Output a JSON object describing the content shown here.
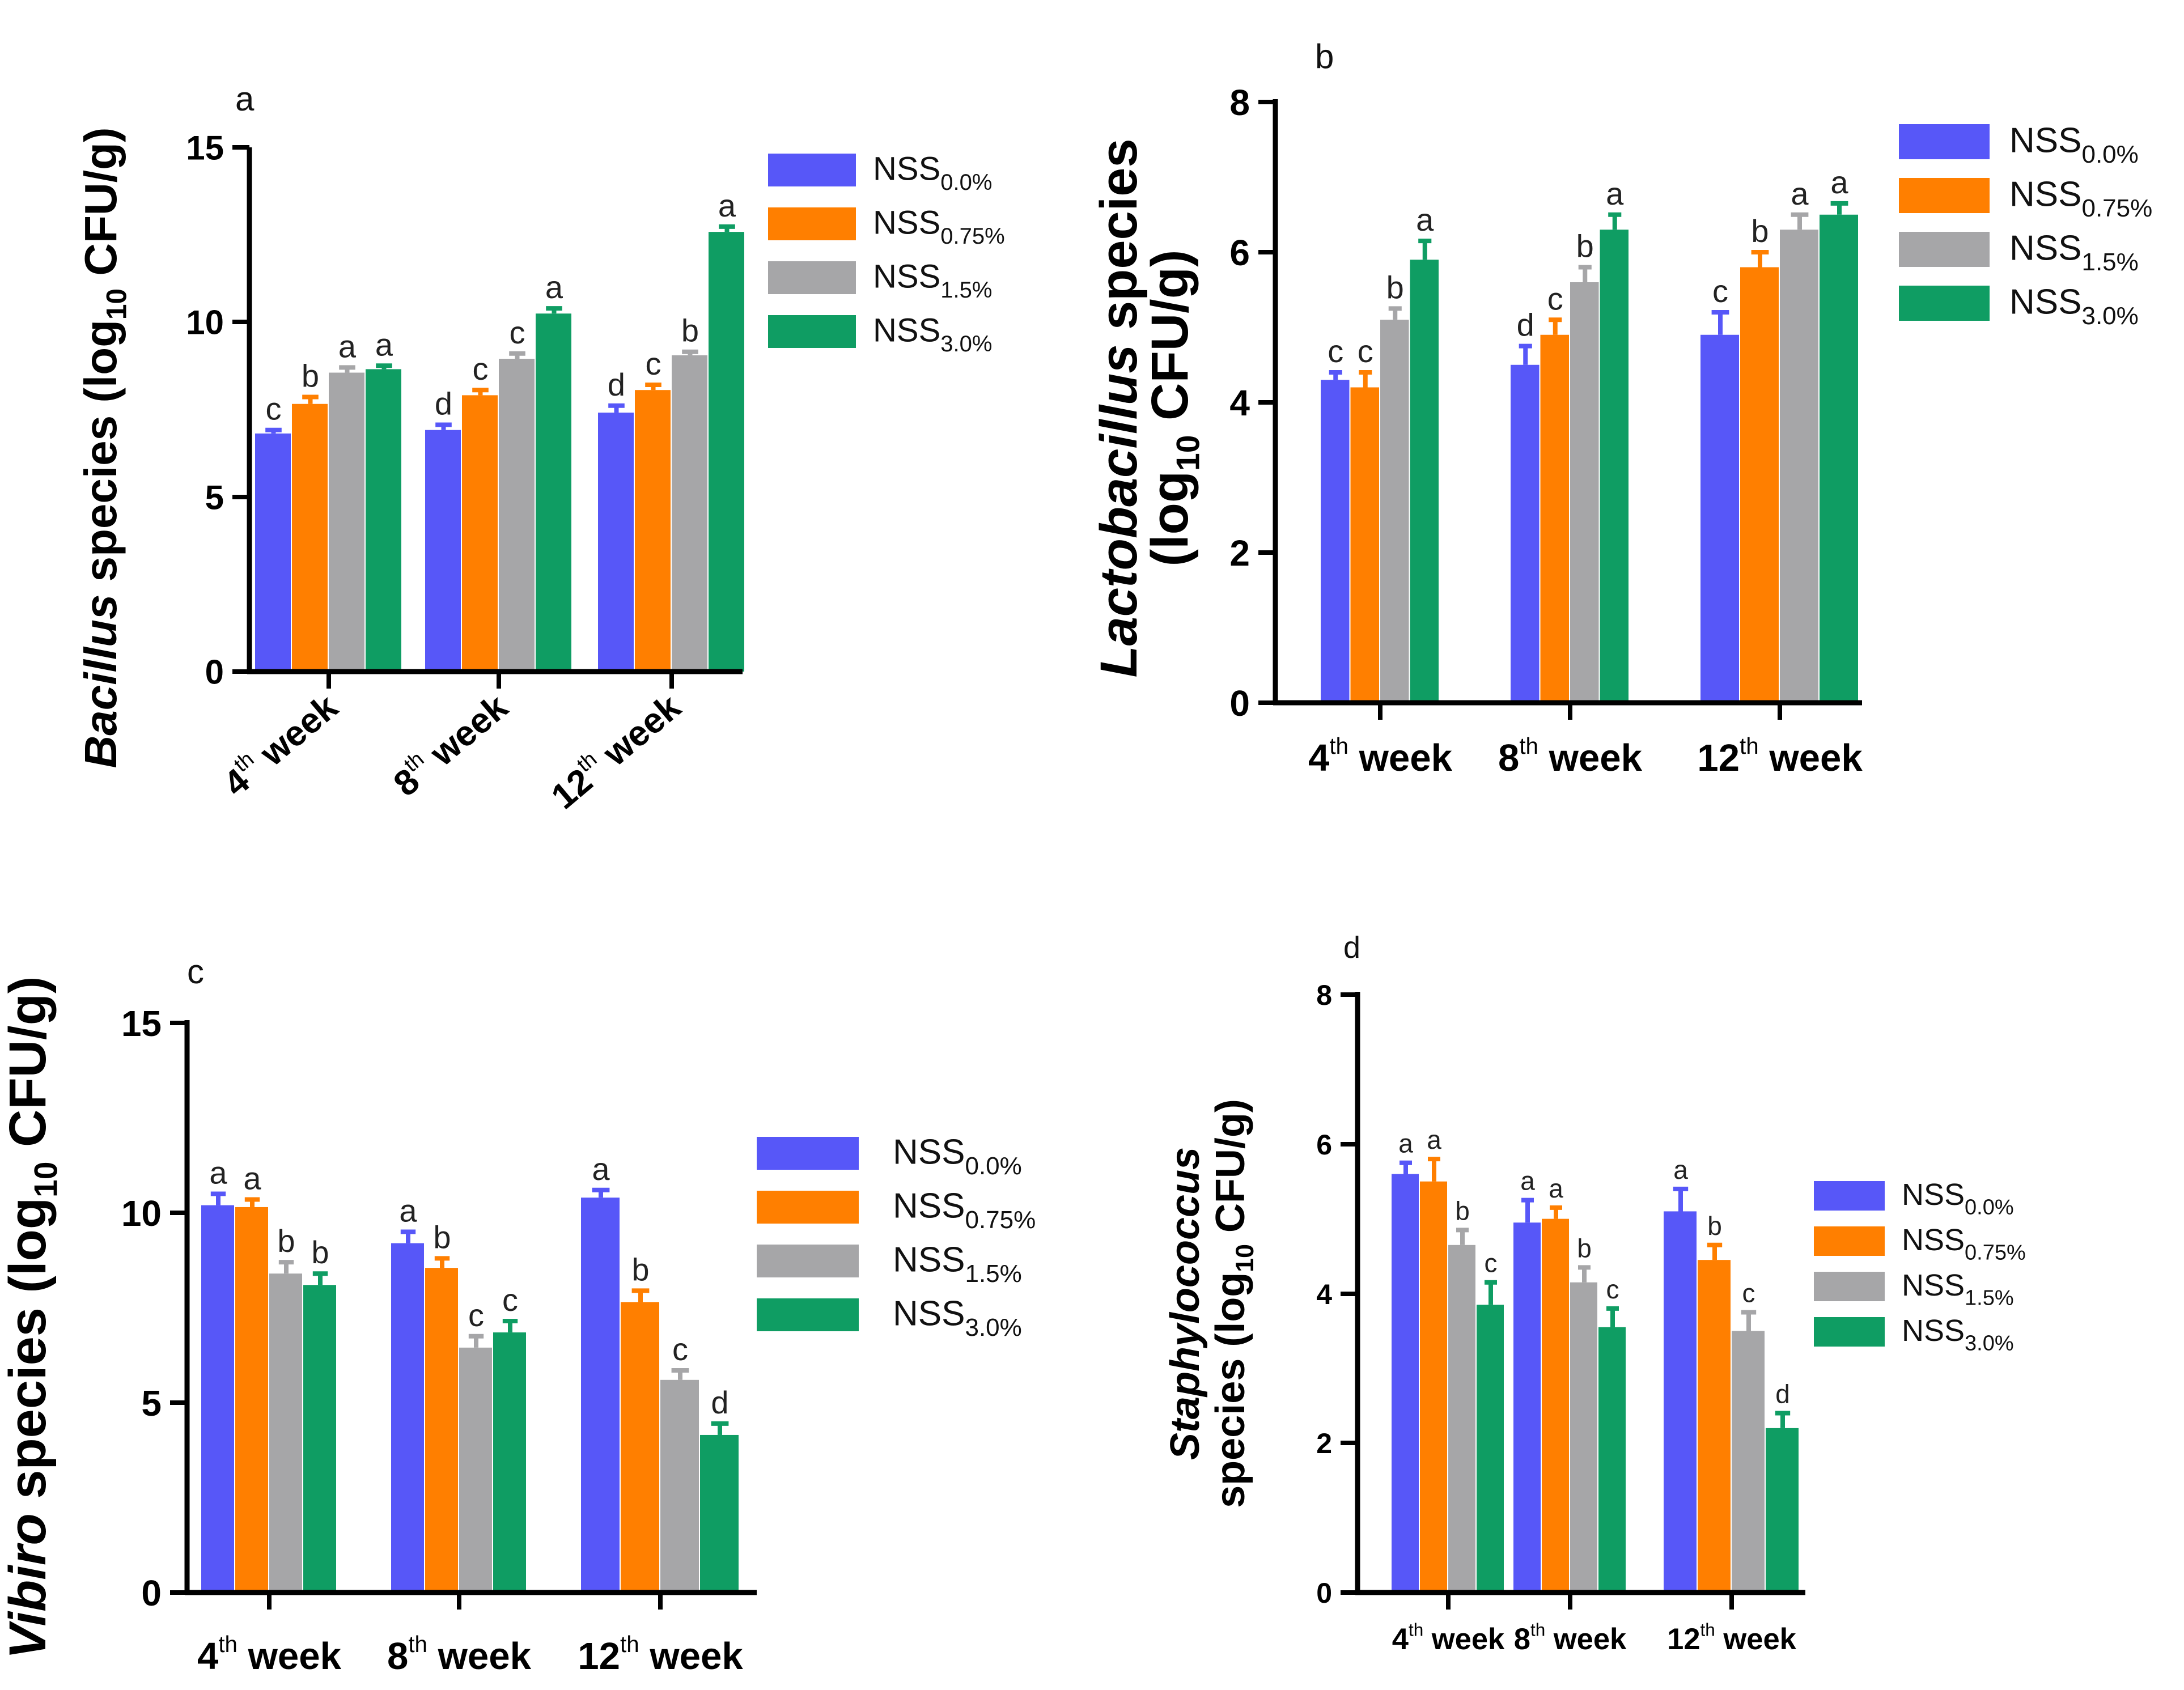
{
  "colors": [
    "#5757F8",
    "#FF7F00",
    "#A6A6A8",
    "#0F9D63"
  ],
  "chart_data": [
    {
      "type": "bar",
      "panel_label": "a",
      "ylabel_italic": "Bacillus",
      "ylabel_rest": " species (log",
      "ylabel_sub": "10",
      "ylabel_end": " CFU/g)",
      "categories": [
        {
          "num": "4",
          "sup": "th",
          "word": " week"
        },
        {
          "num": "8",
          "sup": "th",
          "word": " week"
        },
        {
          "num": "12",
          "sup": "th",
          "word": " week"
        }
      ],
      "series": [
        {
          "base": "NSS",
          "sub": "0.0%",
          "values": [
            6.85,
            6.95,
            7.45
          ],
          "errors": [
            0.1,
            0.15,
            0.2
          ],
          "letters": [
            "c",
            "d",
            "d"
          ]
        },
        {
          "base": "NSS",
          "sub": "0.75%",
          "values": [
            7.7,
            7.95,
            8.1
          ],
          "errors": [
            0.2,
            0.15,
            0.15
          ],
          "letters": [
            "b",
            "c",
            "c"
          ]
        },
        {
          "base": "NSS",
          "sub": "1.5%",
          "values": [
            8.6,
            9.0,
            9.1
          ],
          "errors": [
            0.15,
            0.15,
            0.1
          ],
          "letters": [
            "a",
            "c",
            "b"
          ]
        },
        {
          "base": "NSS",
          "sub": "3.0%",
          "values": [
            8.7,
            10.3,
            12.65
          ],
          "errors": [
            0.1,
            0.15,
            0.15
          ],
          "letters": [
            "a",
            "a",
            "a"
          ]
        }
      ],
      "yticks": [
        "0",
        "5",
        "10",
        "15"
      ],
      "ylim": [
        0,
        15
      ]
    },
    {
      "type": "bar",
      "panel_label": "b",
      "ylabel_italic": "Lactobacillus",
      "ylabel_rest": " species",
      "ylabel2": "(log",
      "ylabel_sub": "10",
      "ylabel_end": " CFU/g)",
      "categories": [
        {
          "num": "4",
          "sup": "th",
          "word": " week"
        },
        {
          "num": "8",
          "sup": "th",
          "word": " week"
        },
        {
          "num": "12",
          "sup": "th",
          "word": " week"
        }
      ],
      "series": [
        {
          "base": "NSS",
          "sub": "0.0%",
          "values": [
            4.3,
            4.5,
            4.9
          ],
          "errors": [
            0.1,
            0.25,
            0.3
          ],
          "letters": [
            "c",
            "d",
            "c"
          ]
        },
        {
          "base": "NSS",
          "sub": "0.75%",
          "values": [
            4.2,
            4.9,
            5.8
          ],
          "errors": [
            0.2,
            0.2,
            0.2
          ],
          "letters": [
            "c",
            "c",
            "b"
          ]
        },
        {
          "base": "NSS",
          "sub": "1.5%",
          "values": [
            5.1,
            5.6,
            6.3
          ],
          "errors": [
            0.15,
            0.2,
            0.2
          ],
          "letters": [
            "b",
            "b",
            "a"
          ]
        },
        {
          "base": "NSS",
          "sub": "3.0%",
          "values": [
            5.9,
            6.3,
            6.5
          ],
          "errors": [
            0.25,
            0.2,
            0.15
          ],
          "letters": [
            "a",
            "a",
            "a"
          ]
        }
      ],
      "yticks": [
        "0",
        "2",
        "4",
        "6",
        "8"
      ],
      "ylim": [
        0,
        8
      ]
    },
    {
      "type": "bar",
      "panel_label": "c",
      "ylabel_italic": "Vibiro",
      "ylabel_rest": " species (log",
      "ylabel_sub": "10",
      "ylabel_end": " CFU/g)",
      "categories": [
        {
          "num": "4",
          "sup": "th",
          "word": " week"
        },
        {
          "num": "8",
          "sup": "th",
          "word": " week"
        },
        {
          "num": "12",
          "sup": "th",
          "word": " week"
        }
      ],
      "series": [
        {
          "base": "NSS",
          "sub": "0.0%",
          "values": [
            10.2,
            9.2,
            10.4
          ],
          "errors": [
            0.3,
            0.3,
            0.2
          ],
          "letters": [
            "a",
            "a",
            "a"
          ]
        },
        {
          "base": "NSS",
          "sub": "0.75%",
          "values": [
            10.15,
            8.55,
            7.65
          ],
          "errors": [
            0.2,
            0.25,
            0.3
          ],
          "letters": [
            "a",
            "b",
            "b"
          ]
        },
        {
          "base": "NSS",
          "sub": "1.5%",
          "values": [
            8.4,
            6.45,
            5.6
          ],
          "errors": [
            0.3,
            0.3,
            0.25
          ],
          "letters": [
            "b",
            "c",
            "c"
          ]
        },
        {
          "base": "NSS",
          "sub": "3.0%",
          "values": [
            8.1,
            6.85,
            4.15
          ],
          "errors": [
            0.3,
            0.3,
            0.3
          ],
          "letters": [
            "b",
            "c",
            "d"
          ]
        }
      ],
      "yticks": [
        "0",
        "5",
        "10",
        "15"
      ],
      "ylim": [
        0,
        15
      ]
    },
    {
      "type": "bar",
      "panel_label": "d",
      "ylabel_italic": "Staphylococcus",
      "ylabel_rest": "",
      "ylabel2": "species (log",
      "ylabel_sub": "10",
      "ylabel_end": " CFU/g)",
      "categories": [
        {
          "num": "4",
          "sup": "th",
          "word": " week"
        },
        {
          "num": "8",
          "sup": "th",
          "word": " week"
        },
        {
          "num": "12",
          "sup": "th",
          "word": " week"
        }
      ],
      "series": [
        {
          "base": "NSS",
          "sub": "0.0%",
          "values": [
            5.6,
            4.95,
            5.1
          ],
          "errors": [
            0.15,
            0.3,
            0.3
          ],
          "letters": [
            "a",
            "a",
            "a"
          ]
        },
        {
          "base": "NSS",
          "sub": "0.75%",
          "values": [
            5.5,
            5.0,
            4.45
          ],
          "errors": [
            0.3,
            0.15,
            0.2
          ],
          "letters": [
            "a",
            "a",
            "b"
          ]
        },
        {
          "base": "NSS",
          "sub": "1.5%",
          "values": [
            4.65,
            4.15,
            3.5
          ],
          "errors": [
            0.2,
            0.2,
            0.25
          ],
          "letters": [
            "b",
            "b",
            "c"
          ]
        },
        {
          "base": "NSS",
          "sub": "3.0%",
          "values": [
            3.85,
            3.55,
            2.2
          ],
          "errors": [
            0.3,
            0.25,
            0.2
          ],
          "letters": [
            "c",
            "c",
            "d"
          ]
        }
      ],
      "yticks": [
        "0",
        "2",
        "4",
        "6",
        "8"
      ],
      "ylim": [
        0,
        8
      ]
    }
  ]
}
